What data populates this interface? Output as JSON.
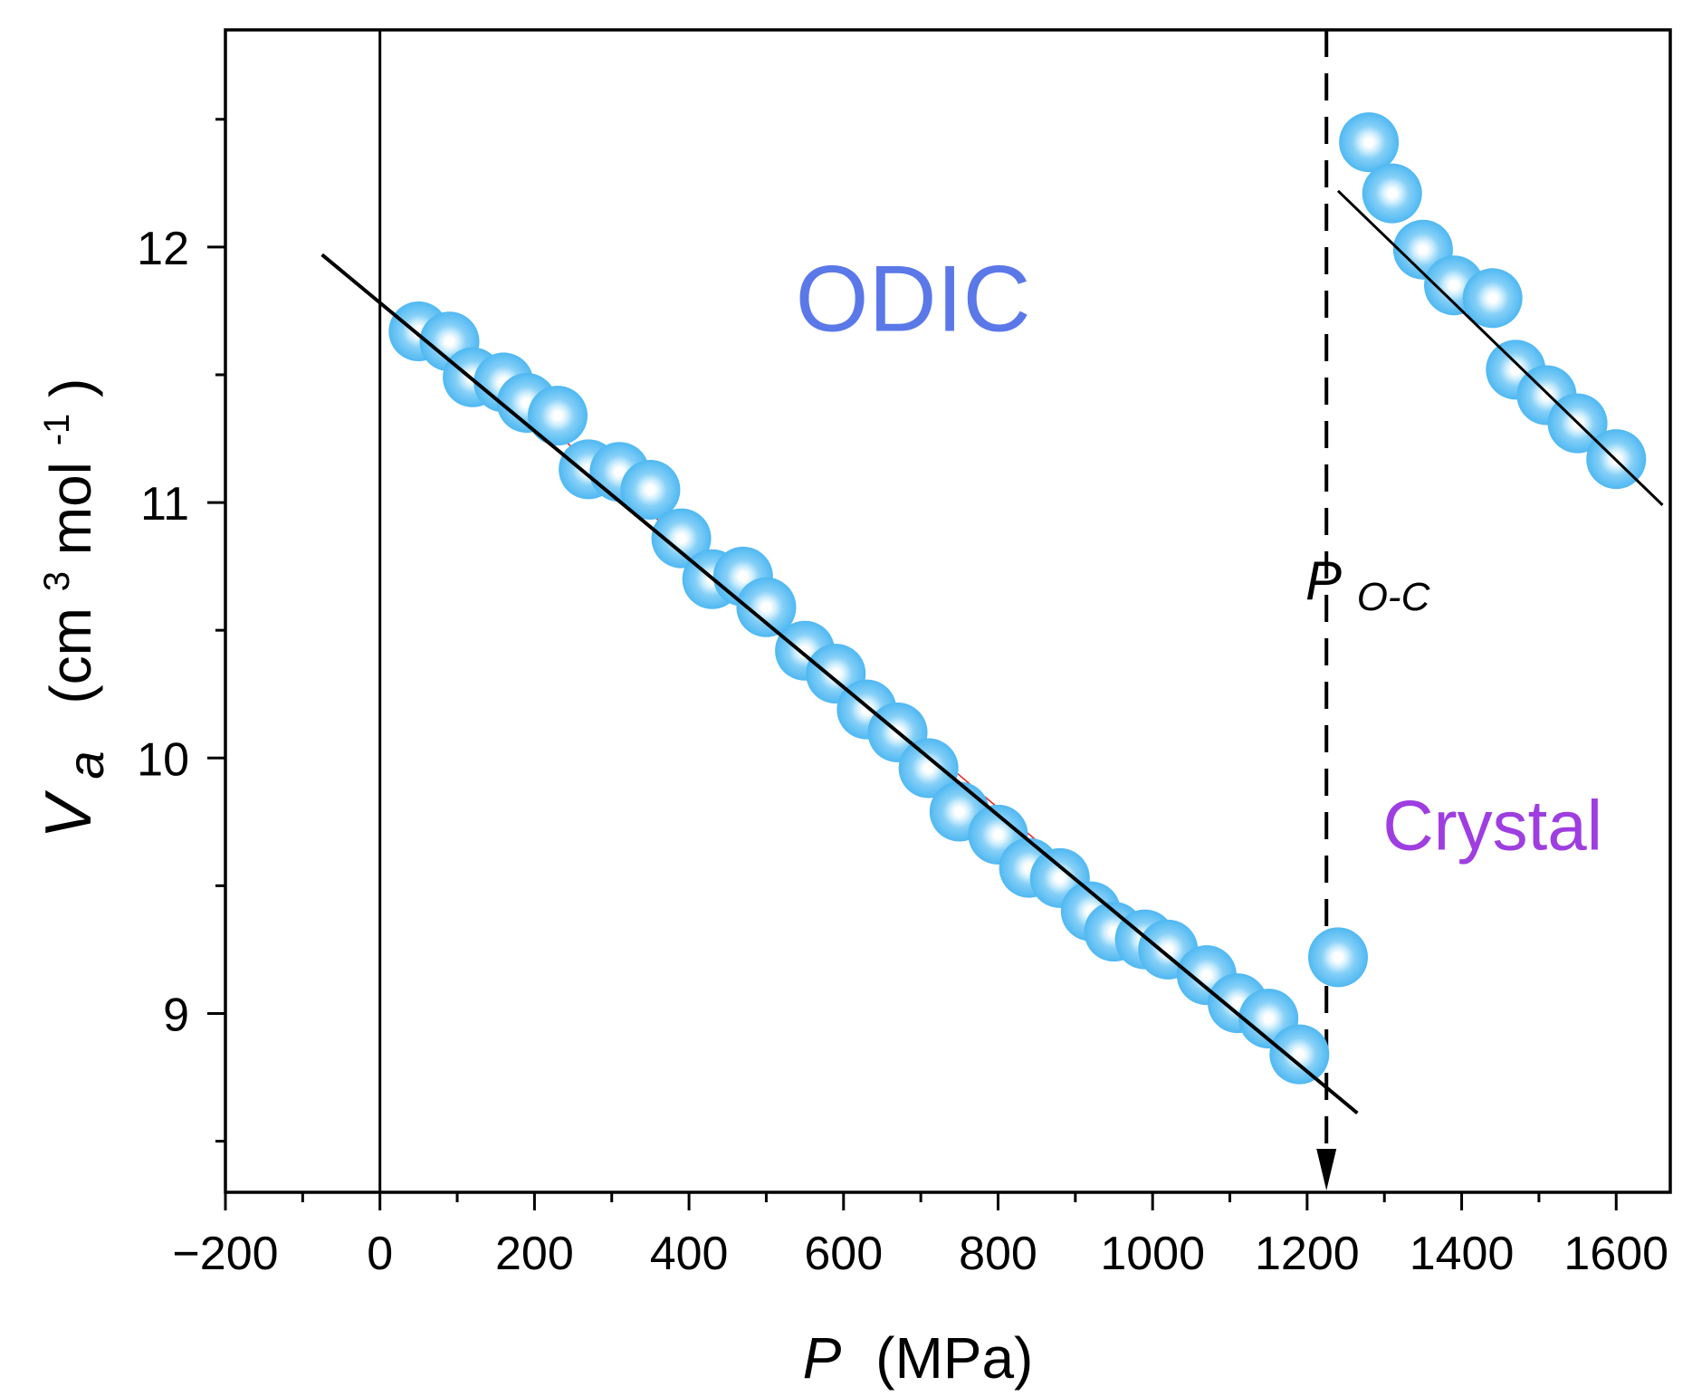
{
  "chart_data": {
    "type": "scatter",
    "title": "",
    "xlabel": {
      "symbol": "P",
      "unit": "(MPa)"
    },
    "ylabel": {
      "symbol": "V",
      "subscript": "a",
      "unit_pre": "(cm",
      "unit_sup1": "3",
      "unit_mid": "mol",
      "unit_sup2": "-1",
      "unit_post": ")"
    },
    "xlim": [
      -200,
      1670
    ],
    "ylim": [
      8.3,
      12.85
    ],
    "xticks": [
      -200,
      0,
      200,
      400,
      600,
      800,
      1000,
      1200,
      1400,
      1600
    ],
    "xtick_labels": [
      "−200",
      "0",
      "200",
      "400",
      "600",
      "800",
      "1000",
      "1200",
      "1400",
      "1600"
    ],
    "yticks": [
      9,
      10,
      11,
      12
    ],
    "ytick_labels": [
      "9",
      "10",
      "11",
      "12"
    ],
    "grid": false,
    "series": [
      {
        "name": "ODIC",
        "color": "#4fb8f2",
        "x": [
          50,
          90,
          120,
          160,
          190,
          230,
          270,
          310,
          350,
          390,
          430,
          470,
          500,
          550,
          590,
          630,
          670,
          710,
          750,
          800,
          840,
          880,
          920,
          950,
          990,
          1020,
          1070,
          1110,
          1150,
          1190
        ],
        "y": [
          11.67,
          11.63,
          11.49,
          11.47,
          11.39,
          11.34,
          11.13,
          11.12,
          11.05,
          10.86,
          10.7,
          10.71,
          10.59,
          10.42,
          10.33,
          10.19,
          10.1,
          9.96,
          9.79,
          9.7,
          9.57,
          9.53,
          9.4,
          9.32,
          9.29,
          9.25,
          9.15,
          9.04,
          8.98,
          8.84
        ]
      },
      {
        "name": "Crystal",
        "color": "#4fb8f2",
        "x": [
          1240,
          1280,
          1310,
          1350,
          1390,
          1440,
          1470,
          1510,
          1550,
          1600
        ],
        "y": [
          9.22,
          12.41,
          12.21,
          11.99,
          11.85,
          11.8,
          11.52,
          11.42,
          11.31,
          11.17
        ]
      }
    ],
    "fits": [
      {
        "name": "ODIC fit",
        "color": "#000000",
        "x": [
          -75,
          1265
        ],
        "y": [
          11.97,
          8.61
        ]
      },
      {
        "name": "ODIC fit (red)",
        "color": "#e02020",
        "x": [
          60,
          1200
        ],
        "y": [
          11.7,
          8.78
        ]
      },
      {
        "name": "Crystal fit",
        "color": "#000000",
        "x": [
          1240,
          1660
        ],
        "y": [
          12.22,
          10.99
        ]
      }
    ],
    "vline_solid": {
      "x": 0
    },
    "transition": {
      "x": 1225,
      "label": "P",
      "label_sub": "O-C"
    },
    "annotations": [
      {
        "text": "ODIC",
        "x": 690,
        "y": 11.8,
        "color": "#5b78e8"
      },
      {
        "text": "Crystal",
        "x": 1440,
        "y": 9.74,
        "color": "#9e3ee0"
      }
    ]
  }
}
